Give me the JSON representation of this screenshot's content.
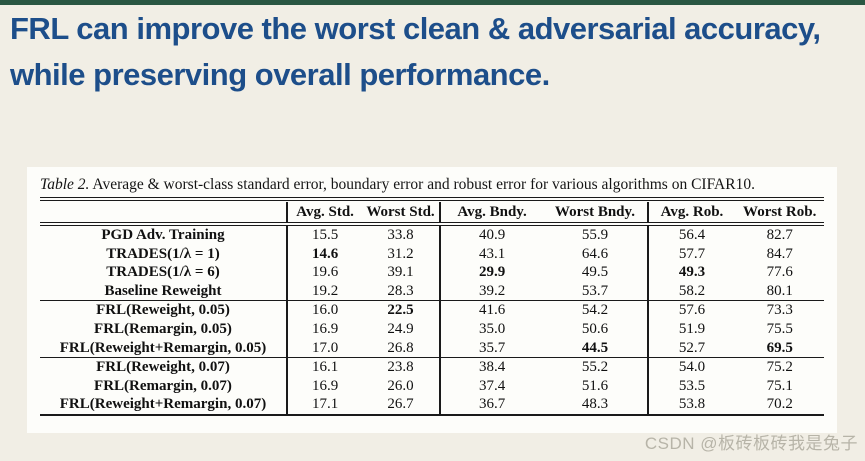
{
  "colors": {
    "top_strip": "#2a5743",
    "background": "#f1eee5",
    "title_text": "#1d4e8a",
    "panel_bg": "#fdfdfa",
    "table_text": "#111111",
    "watermark": "#b7b4a8"
  },
  "title": {
    "line1": "FRL can improve the worst clean & adversarial accuracy,",
    "line2": "while preserving overall performance."
  },
  "table": {
    "caption_label": "Table 2.",
    "caption_text": " Average & worst-class standard error, boundary error and robust error for various algorithms on CIFAR10.",
    "columns": [
      "Avg. Std.",
      "Worst Std.",
      "Avg. Bndy.",
      "Worst Bndy.",
      "Avg. Rob.",
      "Worst Rob."
    ],
    "rows": [
      {
        "label": "PGD Adv. Training",
        "values": [
          "15.5",
          "33.8",
          "40.9",
          "55.9",
          "56.4",
          "82.7"
        ],
        "bold": [
          false,
          false,
          false,
          false,
          false,
          false
        ],
        "group_start": false
      },
      {
        "label": "TRADES(1/λ = 1)",
        "values": [
          "14.6",
          "31.2",
          "43.1",
          "64.6",
          "57.7",
          "84.7"
        ],
        "bold": [
          true,
          false,
          false,
          false,
          false,
          false
        ],
        "group_start": false
      },
      {
        "label": "TRADES(1/λ = 6)",
        "values": [
          "19.6",
          "39.1",
          "29.9",
          "49.5",
          "49.3",
          "77.6"
        ],
        "bold": [
          false,
          false,
          true,
          false,
          true,
          false
        ],
        "group_start": false
      },
      {
        "label": "Baseline Reweight",
        "values": [
          "19.2",
          "28.3",
          "39.2",
          "53.7",
          "58.2",
          "80.1"
        ],
        "bold": [
          false,
          false,
          false,
          false,
          false,
          false
        ],
        "group_start": false
      },
      {
        "label": "FRL(Reweight, 0.05)",
        "values": [
          "16.0",
          "22.5",
          "41.6",
          "54.2",
          "57.6",
          "73.3"
        ],
        "bold": [
          false,
          true,
          false,
          false,
          false,
          false
        ],
        "group_start": true
      },
      {
        "label": "FRL(Remargin, 0.05)",
        "values": [
          "16.9",
          "24.9",
          "35.0",
          "50.6",
          "51.9",
          "75.5"
        ],
        "bold": [
          false,
          false,
          false,
          false,
          false,
          false
        ],
        "group_start": false
      },
      {
        "label": "FRL(Reweight+Remargin, 0.05)",
        "values": [
          "17.0",
          "26.8",
          "35.7",
          "44.5",
          "52.7",
          "69.5"
        ],
        "bold": [
          false,
          false,
          false,
          true,
          false,
          true
        ],
        "group_start": false
      },
      {
        "label": "FRL(Reweight, 0.07)",
        "values": [
          "16.1",
          "23.8",
          "38.4",
          "55.2",
          "54.0",
          "75.2"
        ],
        "bold": [
          false,
          false,
          false,
          false,
          false,
          false
        ],
        "group_start": true
      },
      {
        "label": "FRL(Remargin, 0.07)",
        "values": [
          "16.9",
          "26.0",
          "37.4",
          "51.6",
          "53.5",
          "75.1"
        ],
        "bold": [
          false,
          false,
          false,
          false,
          false,
          false
        ],
        "group_start": false
      },
      {
        "label": "FRL(Reweight+Remargin, 0.07)",
        "values": [
          "17.1",
          "26.7",
          "36.7",
          "48.3",
          "53.8",
          "70.2"
        ],
        "bold": [
          false,
          false,
          false,
          false,
          false,
          false
        ],
        "group_start": false
      }
    ]
  },
  "watermark": "CSDN @板砖板砖我是兔子"
}
